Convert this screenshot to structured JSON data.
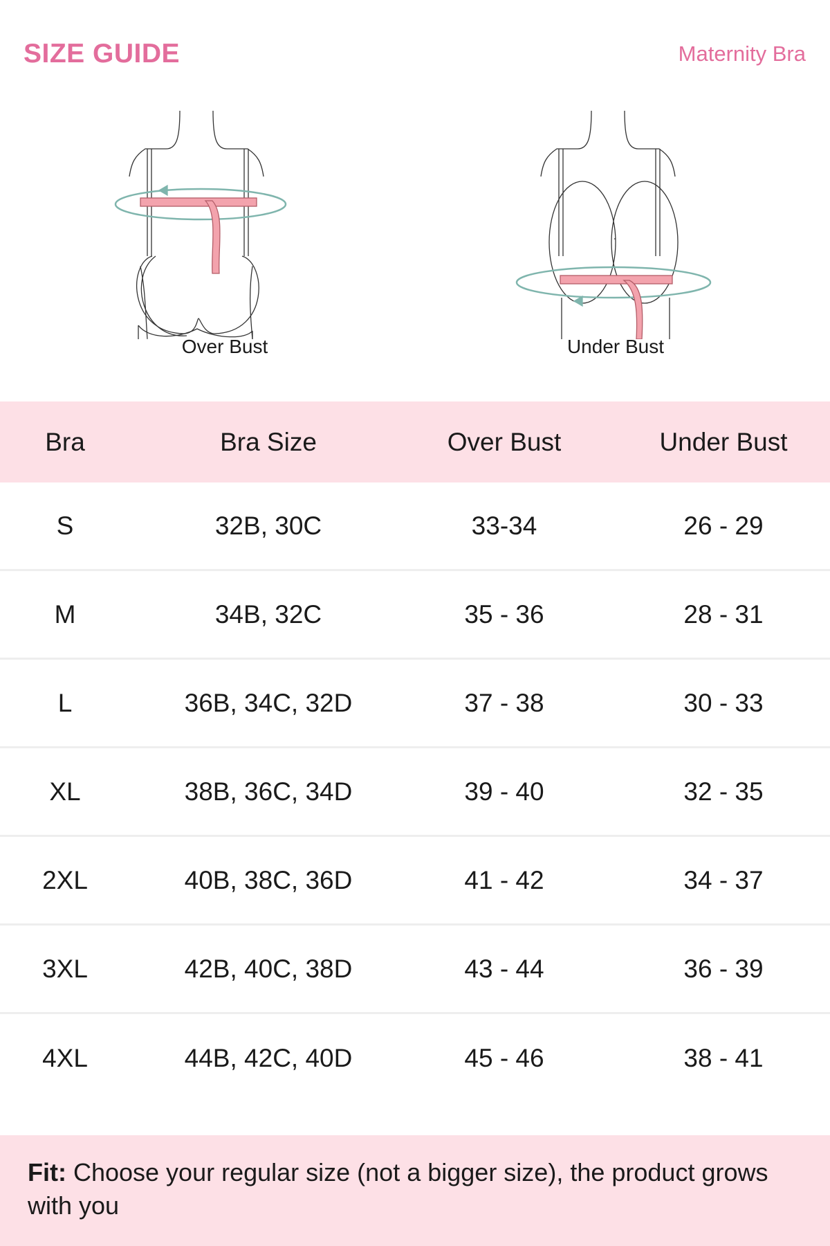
{
  "header": {
    "title": "SIZE GUIDE",
    "product": "Maternity Bra"
  },
  "figures": [
    {
      "label": "Over Bust",
      "icon": "over-bust-measurement-illustration"
    },
    {
      "label": "Under Bust",
      "icon": "under-bust-measurement-illustration"
    }
  ],
  "colors": {
    "accent": "#e36d9c",
    "band": "#fde0e6",
    "tape": "#f3a3ad",
    "arrow": "#7fb5ad"
  },
  "table": {
    "columns": [
      "Bra",
      "Bra Size",
      "Over Bust",
      "Under Bust"
    ],
    "rows": [
      [
        "S",
        "32B, 30C",
        "33-34",
        "26 - 29"
      ],
      [
        "M",
        "34B, 32C",
        "35 - 36",
        "28 - 31"
      ],
      [
        "L",
        "36B, 34C, 32D",
        "37 - 38",
        "30 - 33"
      ],
      [
        "XL",
        "38B, 36C, 34D",
        "39 - 40",
        "32 - 35"
      ],
      [
        "2XL",
        "40B, 38C, 36D",
        "41 - 42",
        "34 - 37"
      ],
      [
        "3XL",
        "42B, 40C, 38D",
        "43 - 44",
        "36 - 39"
      ],
      [
        "4XL",
        "44B, 42C, 40D",
        "45 - 46",
        "38 - 41"
      ]
    ]
  },
  "footer": {
    "label": "Fit:",
    "text": " Choose your regular size (not a bigger size), the product grows with you"
  }
}
